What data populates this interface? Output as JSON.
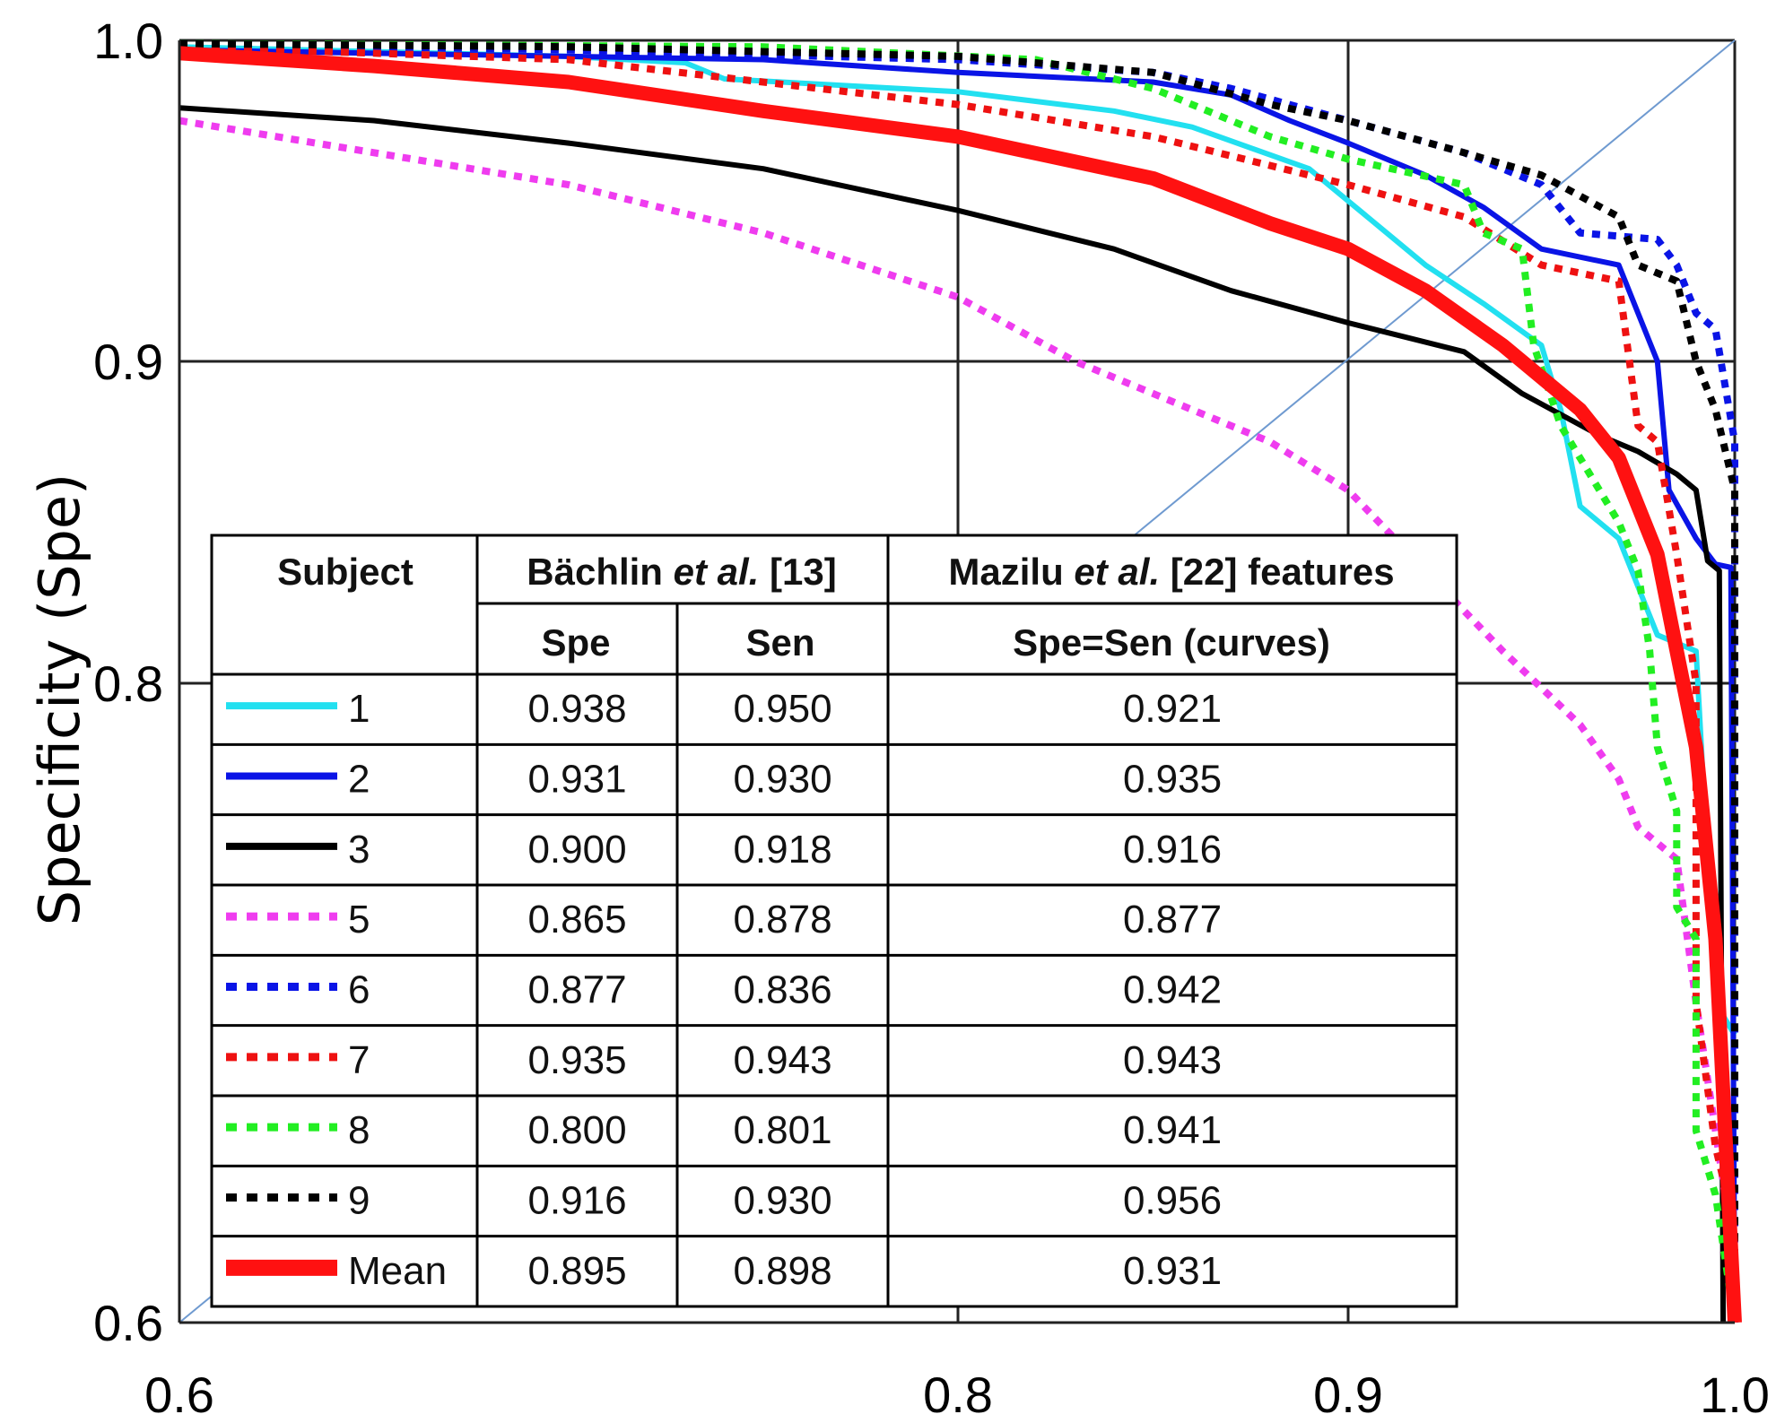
{
  "chart_data": {
    "type": "line",
    "title": "",
    "xlabel": "",
    "ylabel": "Specificity (Spe)",
    "xlim": [
      0.6,
      1.0
    ],
    "ylim": [
      0.6,
      1.0
    ],
    "x_ticks": [
      0.6,
      0.8,
      0.9,
      1.0
    ],
    "y_ticks": [
      0.6,
      0.8,
      0.9,
      1.0
    ],
    "x_tick_labels": [
      "0.6",
      "0.8",
      "0.9",
      "1.0"
    ],
    "y_tick_labels": [
      "0.6",
      "0.8",
      "0.9",
      "1.0"
    ],
    "grid": true,
    "diagonal_reference": true,
    "series": [
      {
        "name": "1",
        "color": "#22e0f0",
        "style": "solid",
        "points": [
          [
            0.6,
            0.998
          ],
          [
            0.7,
            0.995
          ],
          [
            0.73,
            0.993
          ],
          [
            0.74,
            0.988
          ],
          [
            0.8,
            0.984
          ],
          [
            0.84,
            0.978
          ],
          [
            0.86,
            0.973
          ],
          [
            0.89,
            0.96
          ],
          [
            0.905,
            0.945
          ],
          [
            0.92,
            0.93
          ],
          [
            0.935,
            0.918
          ],
          [
            0.95,
            0.905
          ],
          [
            0.955,
            0.885
          ],
          [
            0.96,
            0.855
          ],
          [
            0.97,
            0.845
          ],
          [
            0.98,
            0.815
          ],
          [
            0.99,
            0.81
          ],
          [
            0.995,
            0.7
          ],
          [
            1.0,
            0.69
          ]
        ]
      },
      {
        "name": "2",
        "color": "#0a14e6",
        "style": "solid",
        "points": [
          [
            0.6,
            0.997
          ],
          [
            0.7,
            0.995
          ],
          [
            0.75,
            0.994
          ],
          [
            0.8,
            0.99
          ],
          [
            0.85,
            0.987
          ],
          [
            0.87,
            0.983
          ],
          [
            0.885,
            0.975
          ],
          [
            0.9,
            0.968
          ],
          [
            0.92,
            0.958
          ],
          [
            0.935,
            0.948
          ],
          [
            0.95,
            0.935
          ],
          [
            0.97,
            0.93
          ],
          [
            0.975,
            0.915
          ],
          [
            0.98,
            0.9
          ],
          [
            0.983,
            0.86
          ],
          [
            0.99,
            0.845
          ],
          [
            0.995,
            0.837
          ],
          [
            0.999,
            0.836
          ],
          [
            1.0,
            0.6
          ]
        ]
      },
      {
        "name": "3",
        "color": "#000000",
        "style": "solid",
        "points": [
          [
            0.6,
            0.979
          ],
          [
            0.65,
            0.975
          ],
          [
            0.7,
            0.968
          ],
          [
            0.75,
            0.96
          ],
          [
            0.8,
            0.947
          ],
          [
            0.84,
            0.935
          ],
          [
            0.87,
            0.922
          ],
          [
            0.9,
            0.912
          ],
          [
            0.93,
            0.903
          ],
          [
            0.945,
            0.89
          ],
          [
            0.965,
            0.877
          ],
          [
            0.975,
            0.872
          ],
          [
            0.985,
            0.865
          ],
          [
            0.99,
            0.86
          ],
          [
            0.993,
            0.838
          ],
          [
            0.996,
            0.835
          ],
          [
            0.997,
            0.6
          ]
        ]
      },
      {
        "name": "5",
        "color": "#ef3cef",
        "style": "dotted",
        "points": [
          [
            0.6,
            0.975
          ],
          [
            0.65,
            0.965
          ],
          [
            0.7,
            0.955
          ],
          [
            0.75,
            0.94
          ],
          [
            0.8,
            0.92
          ],
          [
            0.83,
            0.9
          ],
          [
            0.86,
            0.885
          ],
          [
            0.88,
            0.875
          ],
          [
            0.9,
            0.86
          ],
          [
            0.92,
            0.835
          ],
          [
            0.94,
            0.81
          ],
          [
            0.96,
            0.787
          ],
          [
            0.97,
            0.77
          ],
          [
            0.975,
            0.755
          ],
          [
            0.985,
            0.745
          ],
          [
            0.99,
            0.7
          ],
          [
            0.995,
            0.66
          ],
          [
            1.0,
            0.62
          ]
        ]
      },
      {
        "name": "6",
        "color": "#0a14e6",
        "style": "dotted",
        "points": [
          [
            0.6,
            0.999
          ],
          [
            0.7,
            0.997
          ],
          [
            0.8,
            0.994
          ],
          [
            0.85,
            0.99
          ],
          [
            0.87,
            0.985
          ],
          [
            0.9,
            0.975
          ],
          [
            0.93,
            0.965
          ],
          [
            0.95,
            0.955
          ],
          [
            0.96,
            0.94
          ],
          [
            0.98,
            0.938
          ],
          [
            0.985,
            0.93
          ],
          [
            0.99,
            0.915
          ],
          [
            0.995,
            0.91
          ],
          [
            1.0,
            0.875
          ],
          [
            1.0,
            0.6
          ]
        ]
      },
      {
        "name": "7",
        "color": "#ee1111",
        "style": "dotted",
        "points": [
          [
            0.6,
            0.998
          ],
          [
            0.7,
            0.994
          ],
          [
            0.8,
            0.98
          ],
          [
            0.85,
            0.97
          ],
          [
            0.9,
            0.955
          ],
          [
            0.93,
            0.945
          ],
          [
            0.95,
            0.93
          ],
          [
            0.97,
            0.925
          ],
          [
            0.975,
            0.88
          ],
          [
            0.98,
            0.875
          ],
          [
            0.985,
            0.84
          ],
          [
            0.99,
            0.8
          ],
          [
            0.99,
            0.7
          ],
          [
            0.995,
            0.655
          ],
          [
            1.0,
            0.63
          ]
        ]
      },
      {
        "name": "8",
        "color": "#22ee22",
        "style": "dotted",
        "points": [
          [
            0.6,
            0.999
          ],
          [
            0.75,
            0.998
          ],
          [
            0.82,
            0.994
          ],
          [
            0.85,
            0.985
          ],
          [
            0.88,
            0.97
          ],
          [
            0.9,
            0.963
          ],
          [
            0.93,
            0.955
          ],
          [
            0.935,
            0.94
          ],
          [
            0.945,
            0.935
          ],
          [
            0.948,
            0.905
          ],
          [
            0.955,
            0.88
          ],
          [
            0.965,
            0.86
          ],
          [
            0.97,
            0.85
          ],
          [
            0.975,
            0.835
          ],
          [
            0.978,
            0.81
          ],
          [
            0.98,
            0.78
          ],
          [
            0.985,
            0.76
          ],
          [
            0.985,
            0.73
          ],
          [
            0.99,
            0.72
          ],
          [
            0.99,
            0.66
          ],
          [
            0.995,
            0.64
          ],
          [
            1.0,
            0.6
          ]
        ]
      },
      {
        "name": "9",
        "color": "#000000",
        "style": "dotted",
        "points": [
          [
            0.6,
            0.999
          ],
          [
            0.7,
            0.998
          ],
          [
            0.8,
            0.995
          ],
          [
            0.85,
            0.99
          ],
          [
            0.88,
            0.98
          ],
          [
            0.9,
            0.975
          ],
          [
            0.93,
            0.965
          ],
          [
            0.95,
            0.958
          ],
          [
            0.97,
            0.945
          ],
          [
            0.975,
            0.93
          ],
          [
            0.985,
            0.925
          ],
          [
            0.99,
            0.9
          ],
          [
            0.995,
            0.885
          ],
          [
            1.0,
            0.86
          ],
          [
            1.0,
            0.6
          ]
        ]
      },
      {
        "name": "Mean",
        "color": "#ff1111",
        "style": "thick",
        "points": [
          [
            0.6,
            0.996
          ],
          [
            0.65,
            0.992
          ],
          [
            0.7,
            0.987
          ],
          [
            0.75,
            0.978
          ],
          [
            0.8,
            0.97
          ],
          [
            0.85,
            0.957
          ],
          [
            0.88,
            0.943
          ],
          [
            0.9,
            0.935
          ],
          [
            0.92,
            0.922
          ],
          [
            0.94,
            0.905
          ],
          [
            0.96,
            0.885
          ],
          [
            0.97,
            0.87
          ],
          [
            0.98,
            0.84
          ],
          [
            0.985,
            0.81
          ],
          [
            0.99,
            0.78
          ],
          [
            0.995,
            0.72
          ],
          [
            1.0,
            0.6
          ]
        ]
      }
    ]
  },
  "table": {
    "header_subject": "Subject",
    "header_bachlin_pre": "Bächlin ",
    "header_bachlin_it": "et al.",
    "header_bachlin_post": " [13]",
    "header_mazilu_pre": "Mazilu ",
    "header_mazilu_it": "et al.",
    "header_mazilu_post": " [22] features",
    "sub_spe": "Spe",
    "sub_sen": "Sen",
    "sub_curves": "Spe=Sen (curves)",
    "rows": [
      {
        "subject": "1",
        "spe": "0.938",
        "sen": "0.950",
        "curves": "0.921"
      },
      {
        "subject": "2",
        "spe": "0.931",
        "sen": "0.930",
        "curves": "0.935"
      },
      {
        "subject": "3",
        "spe": "0.900",
        "sen": "0.918",
        "curves": "0.916"
      },
      {
        "subject": "5",
        "spe": "0.865",
        "sen": "0.878",
        "curves": "0.877"
      },
      {
        "subject": "6",
        "spe": "0.877",
        "sen": "0.836",
        "curves": "0.942"
      },
      {
        "subject": "7",
        "spe": "0.935",
        "sen": "0.943",
        "curves": "0.943"
      },
      {
        "subject": "8",
        "spe": "0.800",
        "sen": "0.801",
        "curves": "0.941"
      },
      {
        "subject": "9",
        "spe": "0.916",
        "sen": "0.930",
        "curves": "0.956"
      },
      {
        "subject": "Mean",
        "spe": "0.895",
        "sen": "0.898",
        "curves": "0.931"
      }
    ]
  }
}
